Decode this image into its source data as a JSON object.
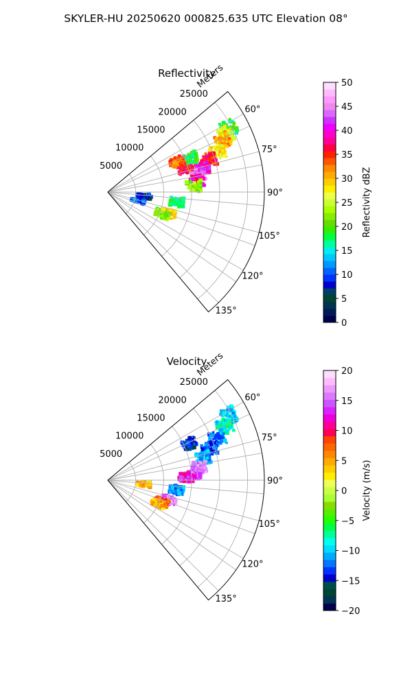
{
  "figure": {
    "title": "SKYLER-HU  20250620  000825.635 UTC Elevation 08°"
  },
  "colors": {
    "background": "#ffffff",
    "grid": "#b0b0b0",
    "axes": "#000000"
  },
  "chart_data": [
    {
      "type": "polar",
      "title": "Reflectivity",
      "radial_label": "Meters",
      "radial_ticks": [
        5000,
        10000,
        15000,
        20000,
        25000
      ],
      "radial_tick_labels": [
        "5000",
        "10000",
        "15000",
        "20000",
        "25000"
      ],
      "rlim": [
        0,
        28000
      ],
      "angular_ticks": [
        60,
        75,
        90,
        105,
        120,
        135
      ],
      "angular_tick_labels": [
        "60°",
        "75°",
        "90°",
        "105°",
        "120°",
        "135°"
      ],
      "theta_range_deg": [
        50,
        140
      ],
      "grid": true,
      "colorbar": {
        "label": "Reflectivity dBZ",
        "range": [
          0,
          50
        ],
        "ticks": [
          0,
          5,
          10,
          15,
          20,
          25,
          30,
          35,
          40,
          45,
          50
        ],
        "tick_labels": [
          "0",
          "5",
          "10",
          "15",
          "20",
          "25",
          "30",
          "35",
          "40",
          "45",
          "50"
        ],
        "colors": [
          "#00004c",
          "#001a5a",
          "#00334d",
          "#004433",
          "#003f66",
          "#0000cc",
          "#0033ff",
          "#0066ff",
          "#0099ff",
          "#00c8ff",
          "#00eeee",
          "#00ff99",
          "#00ff44",
          "#33ee00",
          "#66dd00",
          "#88ee00",
          "#aaff00",
          "#ccff33",
          "#eeff44",
          "#ffee00",
          "#ffcc00",
          "#ffaa00",
          "#ff8800",
          "#ff5500",
          "#ff2200",
          "#ff0044",
          "#ff0099",
          "#ff00cc",
          "#ee00ff",
          "#cc33ff",
          "#dd66ff",
          "#ee88ee",
          "#ff99ff",
          "#ffbbff",
          "#ffddff"
        ]
      },
      "echoes": [
        {
          "theta": 62,
          "r": 24500,
          "value": 18
        },
        {
          "theta": 64,
          "r": 23500,
          "value": 26
        },
        {
          "theta": 66,
          "r": 22500,
          "value": 31
        },
        {
          "theta": 70,
          "r": 21000,
          "value": 28
        },
        {
          "theta": 72,
          "r": 19000,
          "value": 36
        },
        {
          "theta": 76,
          "r": 17500,
          "value": 40
        },
        {
          "theta": 79,
          "r": 16500,
          "value": 44
        },
        {
          "theta": 83,
          "r": 16000,
          "value": 38
        },
        {
          "theta": 86,
          "r": 15500,
          "value": 22
        },
        {
          "theta": 73,
          "r": 14500,
          "value": 36
        },
        {
          "theta": 68,
          "r": 16000,
          "value": 18
        },
        {
          "theta": 66,
          "r": 13500,
          "value": 33
        },
        {
          "theta": 98,
          "r": 12500,
          "value": 17
        },
        {
          "theta": 109,
          "r": 11500,
          "value": 29
        },
        {
          "theta": 112,
          "r": 10500,
          "value": 22
        },
        {
          "theta": 96,
          "r": 6500,
          "value": 8
        },
        {
          "theta": 106,
          "r": 5500,
          "value": 10
        }
      ]
    },
    {
      "type": "polar",
      "title": "Velocity",
      "radial_label": "Meters",
      "radial_ticks": [
        5000,
        10000,
        15000,
        20000,
        25000
      ],
      "radial_tick_labels": [
        "5000",
        "10000",
        "15000",
        "20000",
        "25000"
      ],
      "rlim": [
        0,
        28000
      ],
      "angular_ticks": [
        60,
        75,
        90,
        105,
        120,
        135
      ],
      "angular_tick_labels": [
        "60°",
        "75°",
        "90°",
        "105°",
        "120°",
        "135°"
      ],
      "theta_range_deg": [
        50,
        140
      ],
      "grid": true,
      "colorbar": {
        "label": "Velocity (m/s)",
        "range": [
          -20,
          20
        ],
        "ticks": [
          -20,
          -15,
          -10,
          -5,
          0,
          5,
          10,
          15,
          20
        ],
        "tick_labels": [
          "−20",
          "−15",
          "−10",
          "−5",
          "0",
          "5",
          "10",
          "15",
          "20"
        ],
        "colors": [
          "#00004c",
          "#003355",
          "#004433",
          "#004d4d",
          "#0000cc",
          "#0033ff",
          "#0077ff",
          "#00aaff",
          "#00ddff",
          "#00ffee",
          "#00ff99",
          "#00ff44",
          "#22ff00",
          "#55ee00",
          "#88dd00",
          "#aaff33",
          "#ccff44",
          "#eeff55",
          "#ffee00",
          "#ffcc00",
          "#ffaa00",
          "#ff8800",
          "#ff6600",
          "#ff4400",
          "#ff0055",
          "#ff0099",
          "#ee00dd",
          "#dd22ff",
          "#cc55ff",
          "#dd77ff",
          "#ee99ff",
          "#ffbbff",
          "#ffddff"
        ]
      },
      "echoes": [
        {
          "theta": 62,
          "r": 24500,
          "value": -10
        },
        {
          "theta": 65,
          "r": 23000,
          "value": -8
        },
        {
          "theta": 69,
          "r": 21000,
          "value": -12
        },
        {
          "theta": 73,
          "r": 19000,
          "value": -13
        },
        {
          "theta": 77,
          "r": 17500,
          "value": -11
        },
        {
          "theta": 82,
          "r": 16500,
          "value": 16
        },
        {
          "theta": 86,
          "r": 15500,
          "value": 15
        },
        {
          "theta": 88,
          "r": 14000,
          "value": 12
        },
        {
          "theta": 66,
          "r": 16000,
          "value": -14
        },
        {
          "theta": 98,
          "r": 12500,
          "value": -12
        },
        {
          "theta": 108,
          "r": 11500,
          "value": 15
        },
        {
          "theta": 112,
          "r": 10500,
          "value": 7
        },
        {
          "theta": 115,
          "r": 10000,
          "value": 5
        },
        {
          "theta": 96,
          "r": 6500,
          "value": 4
        }
      ]
    }
  ]
}
